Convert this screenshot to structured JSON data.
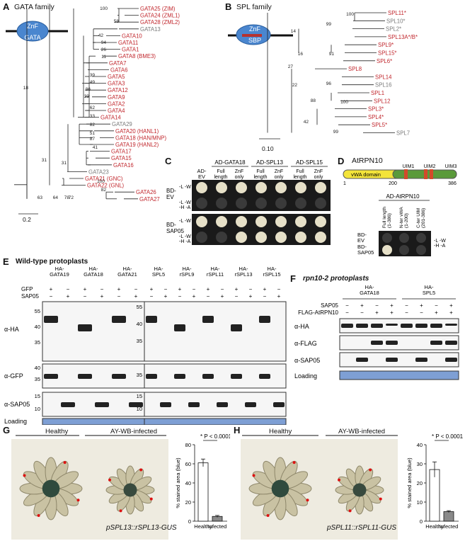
{
  "panelA": {
    "label": "A",
    "title": "GATA family",
    "domain_top": "ZnF",
    "domain_bottom": "GATA",
    "scale": "0.2",
    "leaves": [
      {
        "name": "GATA25 (ZIM)",
        "color": "red"
      },
      {
        "name": "GATA24 (ZML1)",
        "color": "red"
      },
      {
        "name": "GATA28 (ZML2)",
        "color": "red"
      },
      {
        "name": "GATA13",
        "color": "gray"
      },
      {
        "name": "GATA10",
        "color": "red"
      },
      {
        "name": "GATA11",
        "color": "red"
      },
      {
        "name": "GATA1",
        "color": "red"
      },
      {
        "name": "GATA8 (BME3)",
        "color": "red"
      },
      {
        "name": "GATA7",
        "color": "red"
      },
      {
        "name": "GATA6",
        "color": "red"
      },
      {
        "name": "GATA5",
        "color": "red"
      },
      {
        "name": "GATA3",
        "color": "red"
      },
      {
        "name": "GATA12",
        "color": "red"
      },
      {
        "name": "GATA9",
        "color": "red"
      },
      {
        "name": "GATA2",
        "color": "red"
      },
      {
        "name": "GATA4",
        "color": "red"
      },
      {
        "name": "GATA14",
        "color": "red"
      },
      {
        "name": "GATA29",
        "color": "gray"
      },
      {
        "name": "GATA20 (HANL1)",
        "color": "red"
      },
      {
        "name": "GATA18 (HAN/MNP)",
        "color": "red"
      },
      {
        "name": "GATA19 (HANL2)",
        "color": "red"
      },
      {
        "name": "GATA17",
        "color": "red"
      },
      {
        "name": "GATA15",
        "color": "red"
      },
      {
        "name": "GATA16",
        "color": "red"
      },
      {
        "name": "GATA23",
        "color": "gray"
      },
      {
        "name": "GATA21 (GNC)",
        "color": "red"
      },
      {
        "name": "GATA22 (GNL)",
        "color": "red"
      },
      {
        "name": "GATA26",
        "color": "red"
      },
      {
        "name": "GATA27",
        "color": "red"
      }
    ],
    "bootstraps": [
      "100",
      "58",
      "42",
      "94",
      "26",
      "11",
      "39",
      "49",
      "86",
      "39",
      "62",
      "33",
      "82",
      "51",
      "87",
      "41",
      "18",
      "31",
      "100",
      "82",
      "31",
      "63",
      "72",
      "78",
      "64"
    ]
  },
  "panelB": {
    "label": "B",
    "title": "SPL family",
    "domain_top": "ZnF",
    "domain_bottom": "SBP",
    "scale": "0.10",
    "leaves": [
      {
        "name": "SPL11*",
        "color": "red"
      },
      {
        "name": "SPL10*",
        "color": "gray"
      },
      {
        "name": "SPL2*",
        "color": "gray"
      },
      {
        "name": "SPL13A*/B*",
        "color": "red"
      },
      {
        "name": "SPL9*",
        "color": "red"
      },
      {
        "name": "SPL15*",
        "color": "red"
      },
      {
        "name": "SPL6*",
        "color": "red"
      },
      {
        "name": "SPL8",
        "color": "red"
      },
      {
        "name": "SPL14",
        "color": "red"
      },
      {
        "name": "SPL16",
        "color": "gray"
      },
      {
        "name": "SPL1",
        "color": "red"
      },
      {
        "name": "SPL12",
        "color": "red"
      },
      {
        "name": "SPL3*",
        "color": "red"
      },
      {
        "name": "SPL4*",
        "color": "red"
      },
      {
        "name": "SPL5*",
        "color": "red"
      },
      {
        "name": "SPL7",
        "color": "gray"
      }
    ],
    "bootstraps": [
      "100",
      "99",
      "14",
      "16",
      "91",
      "27",
      "22",
      "96",
      "88",
      "100",
      "42",
      "99"
    ]
  },
  "panelC": {
    "label": "C",
    "col_groups": [
      "AD-GATA18",
      "AD-SPL13",
      "AD-SPL15"
    ],
    "col_first": "AD-\nEV",
    "sub_cols": [
      "Full length",
      "ZnF only"
    ],
    "row_groups": [
      "BD-\nEV",
      "BD-\nSAP05"
    ],
    "row_media": [
      "-L -W",
      "-L -W\n-H -A"
    ]
  },
  "panelD": {
    "label": "D",
    "title": "AtRPN10",
    "domain": "vWA domain",
    "uims": [
      "UIM1",
      "UIM2",
      "UIM3"
    ],
    "ticks": [
      "1",
      "200",
      "386"
    ],
    "header": "AD-AtRPN10",
    "cols": [
      "Full length\n(1-386)",
      "N-ter vWA\n(1-200)",
      "C-ter UIM\n(201-386)"
    ],
    "rows": [
      "BD-\nEV",
      "BD-\nSAP05"
    ],
    "media": "-L -W\n-H -A"
  },
  "panelE": {
    "label": "E",
    "title": "Wild-type protoplasts",
    "left_constructs": [
      "HA-\nGATA19",
      "HA-\nGATA18",
      "HA-\nGATA21"
    ],
    "right_constructs": [
      "HA-\nSPL5",
      "HA-\nrSPL9",
      "HA-\nrSPL11",
      "HA-\nrSPL13",
      "HA-\nrSPL15"
    ],
    "treat_rows": [
      "GFP",
      "SAP05"
    ],
    "blots": [
      "α-HA",
      "α-GFP",
      "α-SAP05",
      "Loading"
    ],
    "left_markers": {
      "ha": [
        "55",
        "40",
        "35"
      ],
      "gfp": [
        "40",
        "35"
      ],
      "sap": [
        "15",
        "10"
      ]
    },
    "right_markers": {
      "ha": [
        "55",
        "40",
        "35"
      ],
      "gfp": [
        "35"
      ],
      "sap": [
        "15",
        "10"
      ]
    },
    "plus": "+",
    "minus": "−"
  },
  "panelF": {
    "label": "F",
    "title": "rpn10-2 protoplasts",
    "constructs": [
      "HA-\nGATA18",
      "HA-\nSPL5"
    ],
    "treat_rows": [
      "SAP05",
      "FLAG-AtRPN10"
    ],
    "blots": [
      "α-HA",
      "α-FLAG",
      "α-SAP05",
      "Loading"
    ],
    "signs": {
      "sap": [
        "−",
        "+",
        "−",
        "+"
      ],
      "flag": [
        "−",
        "−",
        "+",
        "+"
      ]
    }
  },
  "panelG": {
    "label": "G",
    "healthy": "Healthy",
    "infected": "AY-WB-infected",
    "caption": "pSPL13::rSPL13-GUS",
    "ylabel": "% stained area (blue)",
    "stat": "* P < 0.0001"
  },
  "panelH": {
    "label": "H",
    "healthy": "Healthy",
    "infected": "AY-WB-infected",
    "caption": "pSPL11::rSPL11-GUS",
    "ylabel": "% stained area (blue)",
    "stat": "* P < 0.0001"
  },
  "chart_data": [
    {
      "type": "bar",
      "categories": [
        "Healthy",
        "Infected"
      ],
      "values": [
        61,
        5
      ],
      "errors": [
        4,
        1
      ],
      "ylabel": "% stained area (blue)",
      "ylim": [
        0,
        80
      ],
      "yticks": [
        "0",
        "20",
        "40",
        "60",
        "80"
      ],
      "colors": [
        "#ffffff",
        "#8a8a8a"
      ]
    },
    {
      "type": "bar",
      "categories": [
        "Healthy",
        "Infected"
      ],
      "values": [
        27,
        5
      ],
      "errors": [
        4,
        0.5
      ],
      "ylabel": "% stained area (blue)",
      "ylim": [
        0,
        40
      ],
      "yticks": [
        "0",
        "10",
        "20",
        "30",
        "40"
      ],
      "colors": [
        "#ffffff",
        "#8a8a8a"
      ]
    }
  ]
}
